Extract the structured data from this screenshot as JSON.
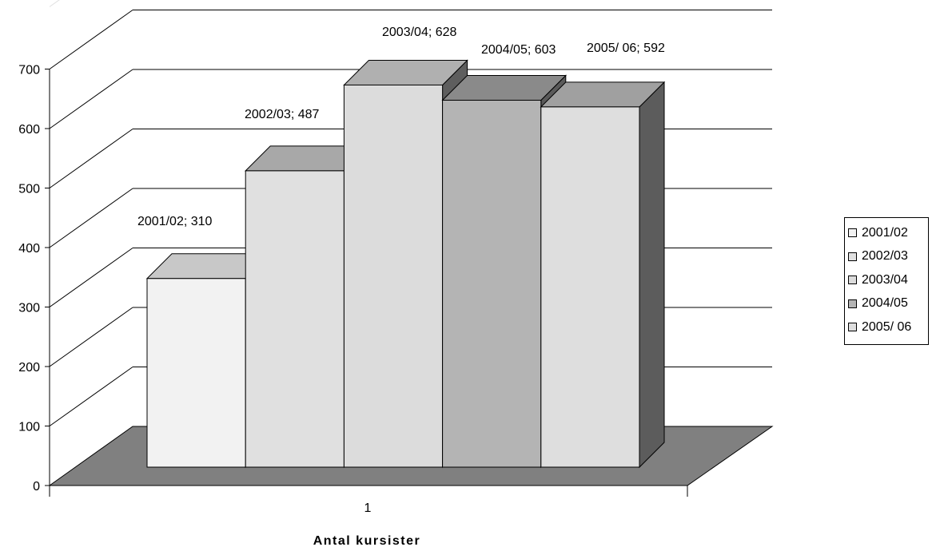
{
  "chart_data": {
    "type": "bar",
    "title": "",
    "categories": [
      "1"
    ],
    "series": [
      {
        "name": "2001/02",
        "values": [
          310
        ],
        "data_label": "2001/02; 310",
        "fill": "#f2f2f2",
        "top": "#c8c8c8",
        "side": "#7a7a7a"
      },
      {
        "name": "2002/03",
        "values": [
          487
        ],
        "data_label": "2002/03; 487",
        "fill": "#e0e0e0",
        "top": "#a8a8a8",
        "side": "#6a6a6a"
      },
      {
        "name": "2003/04",
        "values": [
          628
        ],
        "data_label": "2003/04; 628",
        "fill": "#dcdcdc",
        "top": "#b0b0b0",
        "side": "#5e5e5e"
      },
      {
        "name": "2004/05",
        "values": [
          603
        ],
        "data_label": "2004/05; 603",
        "fill": "#b4b4b4",
        "top": "#8a8a8a",
        "side": "#5a5a5a"
      },
      {
        "name": "2005/ 06",
        "values": [
          592
        ],
        "data_label": "2005/ 06; 592",
        "fill": "#dedede",
        "top": "#a0a0a0",
        "side": "#5c5c5c"
      }
    ],
    "xlabel": "Antal kursister",
    "ylabel": "",
    "ylim": [
      0,
      700
    ],
    "yticks": [
      "0",
      "100",
      "200",
      "300",
      "400",
      "500",
      "600",
      "700"
    ],
    "grid": true,
    "legend": "right",
    "floor_color": "#808080"
  }
}
